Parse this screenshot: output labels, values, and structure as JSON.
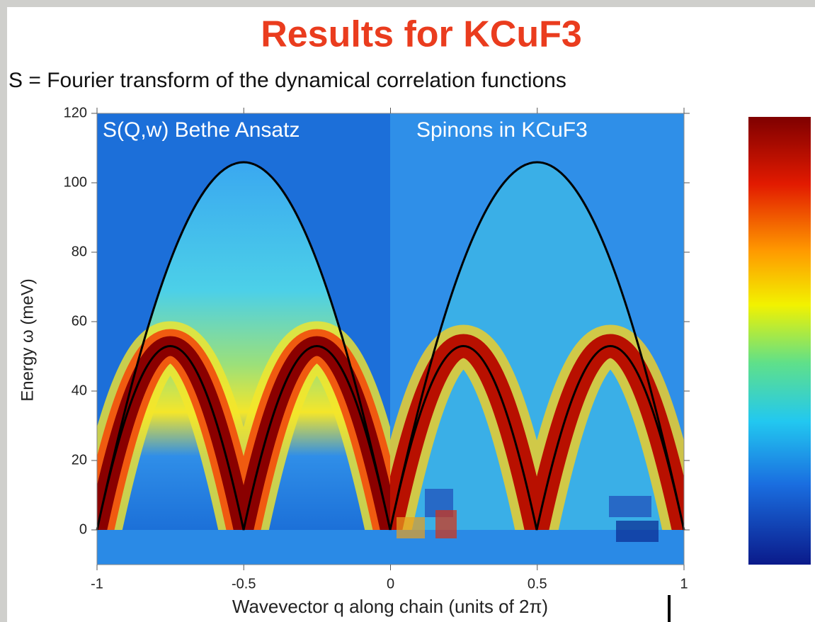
{
  "chart_data": {
    "type": "heatmap",
    "title": "Results for KCuF3",
    "subtitle": "S = Fourier transform of the dynamical correlation functions",
    "panel_labels": [
      "S(Q,w) Bethe Ansatz",
      "Spinons in KCuF3"
    ],
    "x_label": "Wavevector q along chain (units of 2π)",
    "y_label": "Energy ω (meV)",
    "xlim": [
      -1,
      1
    ],
    "ylim": [
      -10,
      120
    ],
    "xticks": [
      -1,
      -0.5,
      0,
      0.5,
      1
    ],
    "yticks": [
      0,
      20,
      40,
      60,
      80,
      100,
      120
    ]
  }
}
